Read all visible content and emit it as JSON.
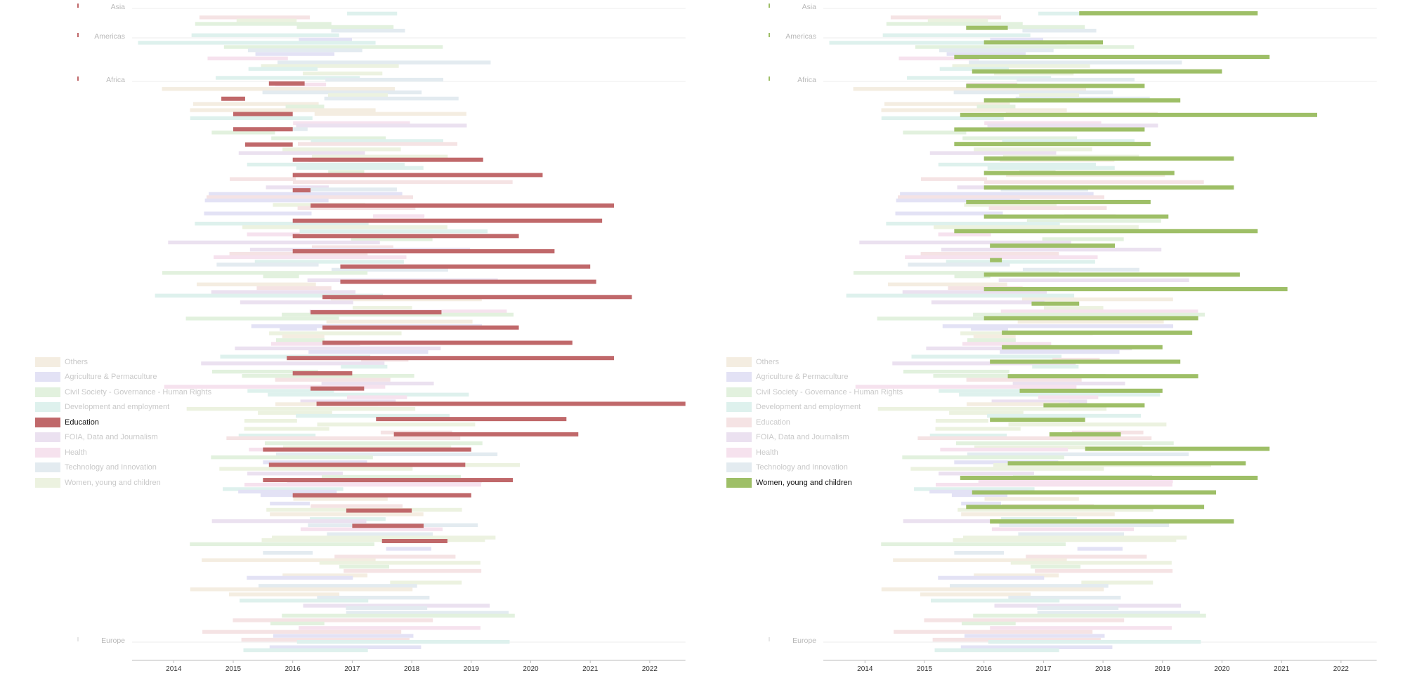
{
  "chart_data": [
    {
      "type": "timeline",
      "highlight": "Education",
      "highlight_color": "#c0686a",
      "x_ticks": [
        "2014",
        "2015",
        "2016",
        "2017",
        "2018",
        "2019",
        "2020",
        "2021",
        "2022"
      ],
      "xlim": [
        2013.3,
        2022.6
      ],
      "regions": [
        "Asia",
        "Americas",
        "Africa",
        "Europe"
      ],
      "legend": [
        "Others",
        "Agriculture & Permaculture",
        "Civil Society - Governance - Human Rights",
        "Development and employment",
        "Education",
        "FOIA, Data and Journalism",
        "Health",
        "Technology and Innovation",
        "Women, young and children"
      ],
      "category_colors": {
        "Others": "#f4ede1",
        "Agriculture & Permaculture": "#e3e2f5",
        "Civil Society - Governance - Human Rights": "#e2f1de",
        "Development and employment": "#def1ed",
        "Education": "#f5e3e4",
        "FOIA, Data and Journalism": "#ebe1f0",
        "Health": "#f6e2ee",
        "Technology and Innovation": "#e3ebf0",
        "Women, young and children": "#ecf2e0"
      },
      "highlighted_projects": [
        {
          "start": 2015.6,
          "end": 2016.2
        },
        {
          "start": 2014.8,
          "end": 2015.2
        },
        {
          "start": 2015.0,
          "end": 2016.0
        },
        {
          "start": 2015.0,
          "end": 2016.0
        },
        {
          "start": 2015.2,
          "end": 2016.0
        },
        {
          "start": 2016.0,
          "end": 2019.2
        },
        {
          "start": 2016.0,
          "end": 2020.2
        },
        {
          "start": 2016.0,
          "end": 2016.3
        },
        {
          "start": 2016.3,
          "end": 2021.4
        },
        {
          "start": 2016.0,
          "end": 2021.2
        },
        {
          "start": 2016.0,
          "end": 2019.8
        },
        {
          "start": 2016.0,
          "end": 2020.4
        },
        {
          "start": 2016.8,
          "end": 2021.0
        },
        {
          "start": 2016.8,
          "end": 2021.1
        },
        {
          "start": 2016.5,
          "end": 2021.7
        },
        {
          "start": 2016.3,
          "end": 2018.5
        },
        {
          "start": 2016.5,
          "end": 2019.8
        },
        {
          "start": 2016.5,
          "end": 2020.7
        },
        {
          "start": 2015.9,
          "end": 2021.4
        },
        {
          "start": 2016.0,
          "end": 2017.0
        },
        {
          "start": 2016.3,
          "end": 2017.2
        },
        {
          "start": 2016.4,
          "end": 2022.6
        },
        {
          "start": 2017.4,
          "end": 2020.6
        },
        {
          "start": 2017.7,
          "end": 2020.8
        },
        {
          "start": 2015.5,
          "end": 2019.0
        },
        {
          "start": 2015.6,
          "end": 2018.9
        },
        {
          "start": 2015.5,
          "end": 2019.7
        },
        {
          "start": 2016.0,
          "end": 2019.0
        },
        {
          "start": 2016.9,
          "end": 2018.0
        },
        {
          "start": 2017.0,
          "end": 2018.2
        },
        {
          "start": 2017.5,
          "end": 2018.6
        }
      ]
    },
    {
      "type": "timeline",
      "highlight": "Women, young and children",
      "highlight_color": "#9ebf67",
      "x_ticks": [
        "2014",
        "2015",
        "2016",
        "2017",
        "2018",
        "2019",
        "2020",
        "2021",
        "2022"
      ],
      "xlim": [
        2013.3,
        2022.6
      ],
      "regions": [
        "Asia",
        "Americas",
        "Africa",
        "Europe"
      ],
      "legend": [
        "Others",
        "Agriculture & Permaculture",
        "Civil Society - Governance - Human Rights",
        "Development and employment",
        "Education",
        "FOIA, Data and Journalism",
        "Health",
        "Technology and Innovation",
        "Women, young and children"
      ],
      "highlighted_projects": [
        {
          "start": 2017.6,
          "end": 2020.6
        },
        {
          "start": 2015.7,
          "end": 2016.4
        },
        {
          "start": 2016.0,
          "end": 2018.0
        },
        {
          "start": 2015.5,
          "end": 2020.8
        },
        {
          "start": 2015.8,
          "end": 2020.0
        },
        {
          "start": 2015.7,
          "end": 2018.7
        },
        {
          "start": 2016.0,
          "end": 2019.3
        },
        {
          "start": 2015.6,
          "end": 2021.6
        },
        {
          "start": 2015.5,
          "end": 2018.7
        },
        {
          "start": 2015.5,
          "end": 2018.8
        },
        {
          "start": 2016.0,
          "end": 2020.2
        },
        {
          "start": 2016.0,
          "end": 2019.2
        },
        {
          "start": 2016.0,
          "end": 2020.2
        },
        {
          "start": 2015.7,
          "end": 2018.8
        },
        {
          "start": 2016.0,
          "end": 2019.1
        },
        {
          "start": 2015.5,
          "end": 2020.6
        },
        {
          "start": 2016.1,
          "end": 2018.2
        },
        {
          "start": 2016.1,
          "end": 2016.3
        },
        {
          "start": 2016.0,
          "end": 2020.3
        },
        {
          "start": 2016.0,
          "end": 2021.1
        },
        {
          "start": 2016.8,
          "end": 2017.6
        },
        {
          "start": 2016.0,
          "end": 2019.6
        },
        {
          "start": 2016.3,
          "end": 2019.5
        },
        {
          "start": 2016.3,
          "end": 2019.0
        },
        {
          "start": 2016.1,
          "end": 2019.3
        },
        {
          "start": 2016.4,
          "end": 2019.6
        },
        {
          "start": 2016.6,
          "end": 2019.0
        },
        {
          "start": 2017.0,
          "end": 2018.7
        },
        {
          "start": 2016.1,
          "end": 2017.7
        },
        {
          "start": 2017.1,
          "end": 2018.3
        },
        {
          "start": 2017.7,
          "end": 2020.8
        },
        {
          "start": 2016.4,
          "end": 2020.4
        },
        {
          "start": 2015.6,
          "end": 2020.6
        },
        {
          "start": 2015.8,
          "end": 2019.9
        },
        {
          "start": 2015.7,
          "end": 2019.7
        },
        {
          "start": 2016.1,
          "end": 2020.2
        }
      ]
    }
  ]
}
